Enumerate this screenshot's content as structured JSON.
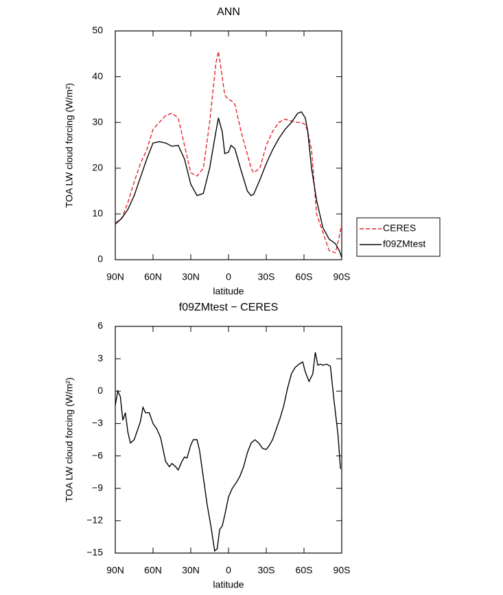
{
  "chart_data": [
    {
      "type": "line",
      "title": "ANN",
      "xlabel": "latitude",
      "ylabel": "TOA LW cloud forcing (W/m²)",
      "x": [
        90,
        85,
        80,
        75,
        70,
        65,
        60,
        55,
        50,
        45,
        40,
        35,
        30,
        25,
        20,
        15,
        10,
        8,
        5,
        3,
        0,
        -2,
        -5,
        -10,
        -15,
        -18,
        -20,
        -25,
        -30,
        -35,
        -40,
        -45,
        -50,
        -55,
        -58,
        -61,
        -63,
        -66,
        -70,
        -75,
        -80,
        -85,
        -88,
        -90
      ],
      "series": [
        {
          "name": "CERES",
          "color": "#e8202a",
          "dashed": true,
          "values": [
            8,
            9,
            12.5,
            17,
            21,
            24,
            28.5,
            30,
            31.5,
            32,
            31,
            25,
            19,
            18.3,
            20,
            30,
            43,
            45.5,
            40,
            36,
            35,
            34.8,
            34,
            28,
            23,
            20,
            19,
            20,
            25,
            28,
            30,
            30.7,
            30.3,
            30,
            30,
            29.5,
            28,
            24,
            10,
            6,
            2,
            1.5,
            5,
            8
          ]
        },
        {
          "name": "f09ZMtest",
          "color": "#000000",
          "dashed": false,
          "values": [
            7.8,
            9,
            11,
            14,
            18,
            22,
            25.5,
            25.8,
            25.5,
            24.8,
            25,
            22,
            16.5,
            14,
            14.5,
            20,
            28,
            31,
            28,
            23.2,
            23.5,
            25,
            24.3,
            19.5,
            15,
            14,
            14.3,
            17.5,
            21,
            24,
            26.5,
            28.5,
            30,
            32,
            32.3,
            31,
            28,
            20,
            13,
            7,
            4.5,
            3.5,
            2,
            0.5
          ]
        }
      ],
      "xlim": [
        90,
        -90
      ],
      "ylim": [
        0,
        50
      ],
      "xticks": [
        {
          "value": 90,
          "label": "90N"
        },
        {
          "value": 60,
          "label": "60N"
        },
        {
          "value": 30,
          "label": "30N"
        },
        0,
        {
          "value": -30,
          "label": "30S"
        },
        {
          "value": -60,
          "label": "60S"
        },
        {
          "value": -90,
          "label": "90S"
        }
      ],
      "yticks": [
        0,
        10,
        20,
        30,
        40,
        50
      ],
      "legend": "right"
    },
    {
      "type": "line",
      "title": "f09ZMtest − CERES",
      "xlabel": "latitude",
      "ylabel": "TOA LW cloud forcing (W/m²)",
      "x": [
        90,
        88,
        86,
        84,
        82,
        80,
        78,
        75,
        72,
        70,
        68,
        66,
        63,
        60,
        57,
        54,
        50,
        47,
        45,
        42,
        40,
        37,
        35,
        33,
        30,
        28,
        25,
        23,
        20,
        17,
        14,
        11,
        9,
        7,
        5,
        3,
        0,
        -3,
        -6,
        -9,
        -12,
        -15,
        -18,
        -21,
        -24,
        -27,
        -30,
        -32,
        -35,
        -38,
        -41,
        -44,
        -47,
        -50,
        -53,
        -56,
        -59,
        -61,
        -64,
        -67,
        -69,
        -71,
        -73,
        -75,
        -78,
        -81,
        -84,
        -87,
        -89
      ],
      "series": [
        {
          "color": "#000000",
          "dashed": false,
          "values": [
            -1.3,
            0,
            -0.5,
            -2.7,
            -2,
            -3.8,
            -4.8,
            -4.5,
            -3.5,
            -2.8,
            -1.5,
            -2,
            -2,
            -3,
            -3.5,
            -4.3,
            -6.5,
            -7,
            -6.7,
            -7,
            -7.3,
            -6.5,
            -6.1,
            -6.2,
            -5,
            -4.5,
            -4.5,
            -5.5,
            -8,
            -10.5,
            -12.5,
            -14.8,
            -14.6,
            -12.8,
            -12.5,
            -11.5,
            -9.8,
            -9,
            -8.5,
            -7.9,
            -7,
            -5.7,
            -4.8,
            -4.5,
            -4.8,
            -5.3,
            -5.4,
            -5.1,
            -4.5,
            -3.5,
            -2.5,
            -1.3,
            0.3,
            1.6,
            2.2,
            2.5,
            2.7,
            1.8,
            0.9,
            1.6,
            3.6,
            2.4,
            2.5,
            2.4,
            2.5,
            2.3,
            -1,
            -4,
            -7.2
          ]
        }
      ],
      "xlim": [
        90,
        -90
      ],
      "ylim": [
        -15,
        6
      ],
      "xticks": [
        {
          "value": 90,
          "label": "90N"
        },
        {
          "value": 60,
          "label": "60N"
        },
        {
          "value": 30,
          "label": "30N"
        },
        0,
        {
          "value": -30,
          "label": "30S"
        },
        {
          "value": -60,
          "label": "60S"
        },
        {
          "value": -90,
          "label": "90S"
        }
      ],
      "yticks": [
        {
          "value": -15,
          "label": "−15"
        },
        {
          "value": -12,
          "label": "−12"
        },
        {
          "value": -9,
          "label": "−9"
        },
        {
          "value": -6,
          "label": "−6"
        },
        {
          "value": -3,
          "label": "−3"
        },
        0,
        3,
        6
      ]
    }
  ]
}
